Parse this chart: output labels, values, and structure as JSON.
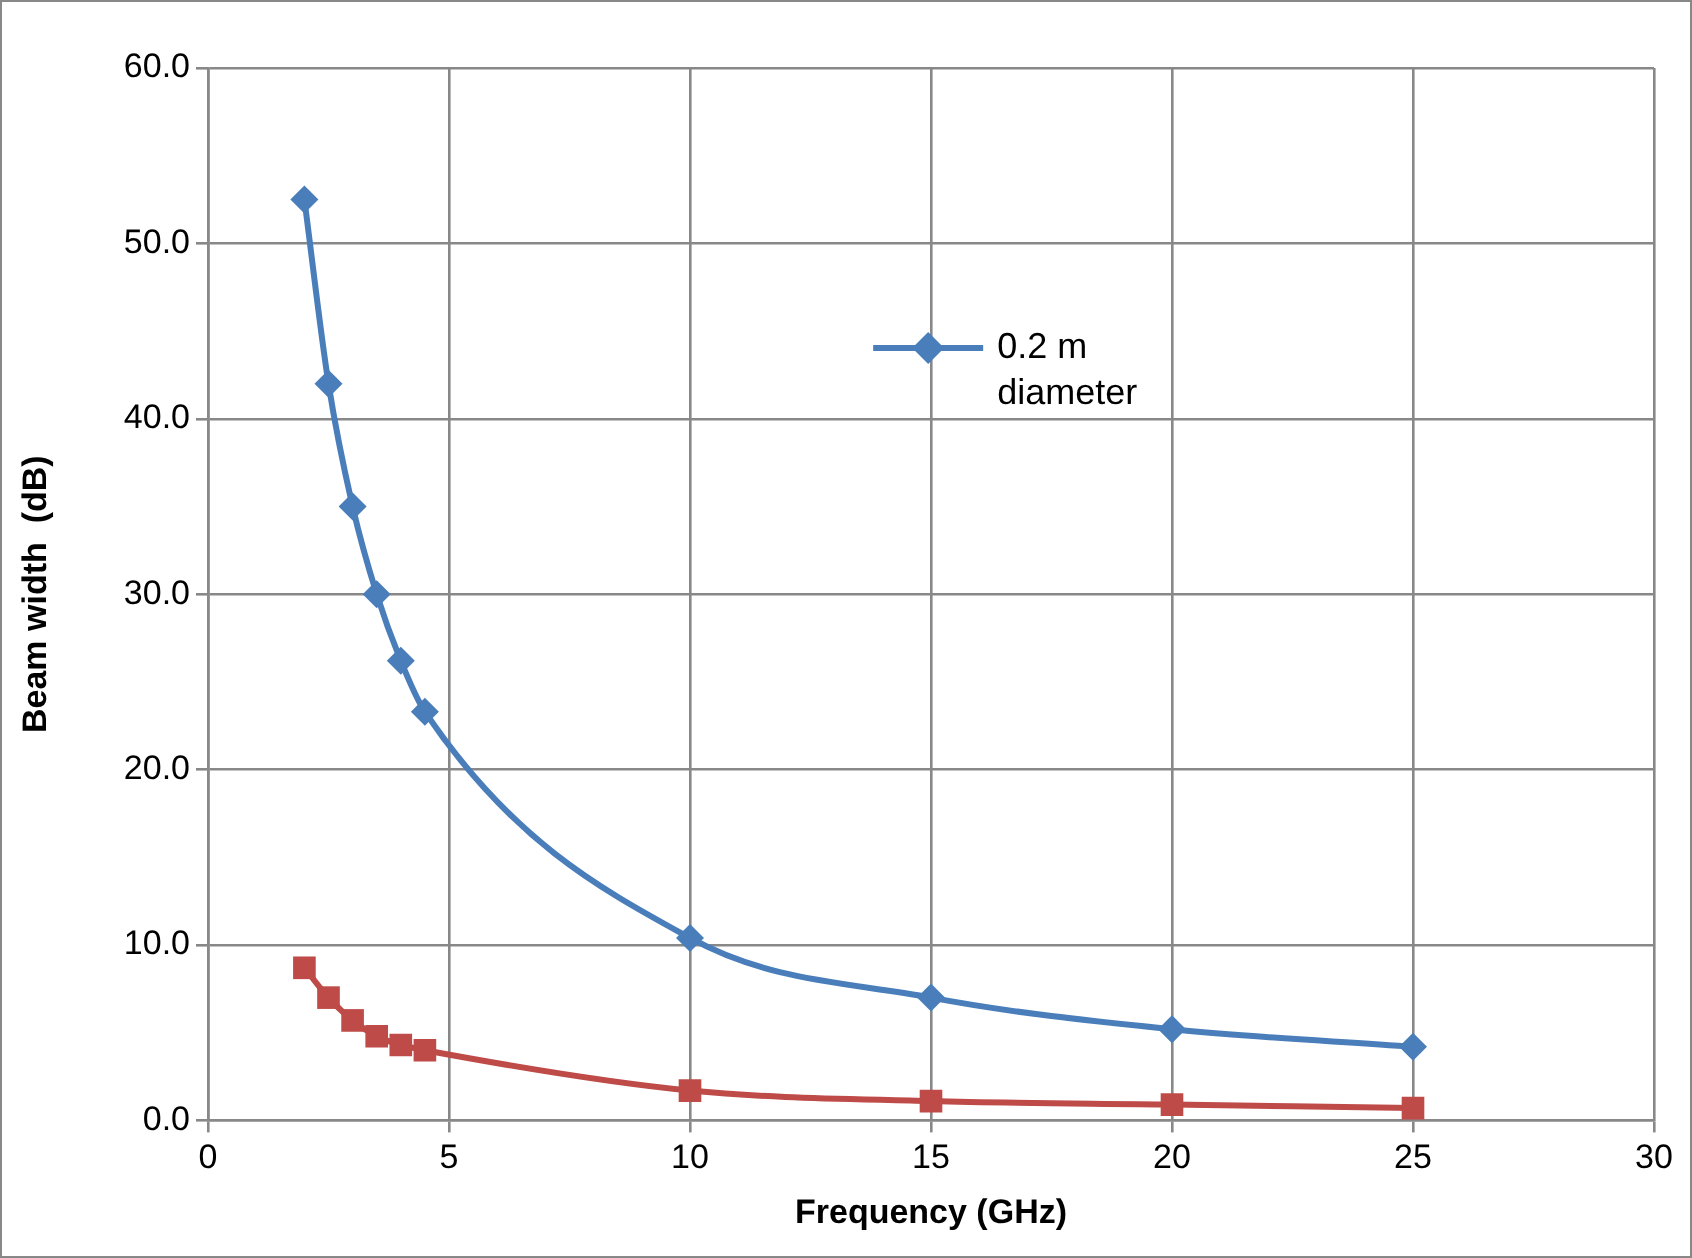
{
  "chart_data": {
    "type": "line",
    "xlabel": "Frequency (GHz)",
    "ylabel": "Beam width  (dB)",
    "x": [
      2,
      2.5,
      3,
      3.5,
      4,
      4.5,
      10,
      15,
      20,
      25
    ],
    "series": [
      {
        "name": "0.2 m diameter",
        "color": "#4a7ebb",
        "marker": "diamond",
        "values": [
          52.5,
          42.0,
          35.0,
          30.0,
          26.2,
          23.3,
          10.4,
          7.0,
          5.2,
          4.2
        ]
      },
      {
        "color": "#be4b48",
        "marker": "square",
        "values": [
          8.7,
          7.0,
          5.7,
          4.8,
          4.3,
          4.0,
          1.7,
          1.1,
          0.9,
          0.7
        ]
      }
    ],
    "xlim": [
      0,
      30
    ],
    "xticks": [
      0,
      5,
      10,
      15,
      20,
      25,
      30
    ],
    "ylim": [
      0,
      60
    ],
    "yticks": [
      {
        "value": 0,
        "label": "0.0"
      },
      {
        "value": 10,
        "label": "10.0"
      },
      {
        "value": 20,
        "label": "20.0"
      },
      {
        "value": 30,
        "label": "30.0"
      },
      {
        "value": 40,
        "label": "40.0"
      },
      {
        "value": 50,
        "label": "50.0"
      },
      {
        "value": 60,
        "label": "60.0"
      }
    ],
    "grid": true,
    "legend": "top right",
    "line_style": "solid"
  }
}
